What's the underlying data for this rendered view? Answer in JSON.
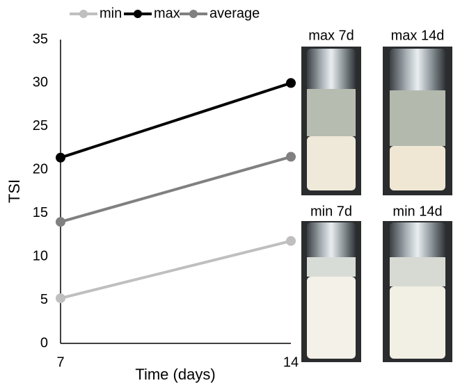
{
  "chart_data": {
    "type": "line",
    "x": [
      7,
      14
    ],
    "series": [
      {
        "name": "min",
        "color": "#bfbfbf",
        "values": [
          5.2,
          11.8
        ]
      },
      {
        "name": "max",
        "color": "#000000",
        "values": [
          21.4,
          30.0
        ]
      },
      {
        "name": "average",
        "color": "#808080",
        "values": [
          14.0,
          21.5
        ]
      }
    ],
    "xlim": [
      7,
      14
    ],
    "xticks": [
      7,
      14
    ],
    "ylim": [
      0,
      35
    ],
    "yticks": [
      0,
      5,
      10,
      15,
      20,
      25,
      30,
      35
    ],
    "x_label": "Time (days)",
    "y_label": "TSI",
    "legend": "top"
  },
  "photos": [
    {
      "label": "max 7d"
    },
    {
      "label": "max 14d"
    },
    {
      "label": "min 7d"
    },
    {
      "label": "min 14d"
    }
  ]
}
